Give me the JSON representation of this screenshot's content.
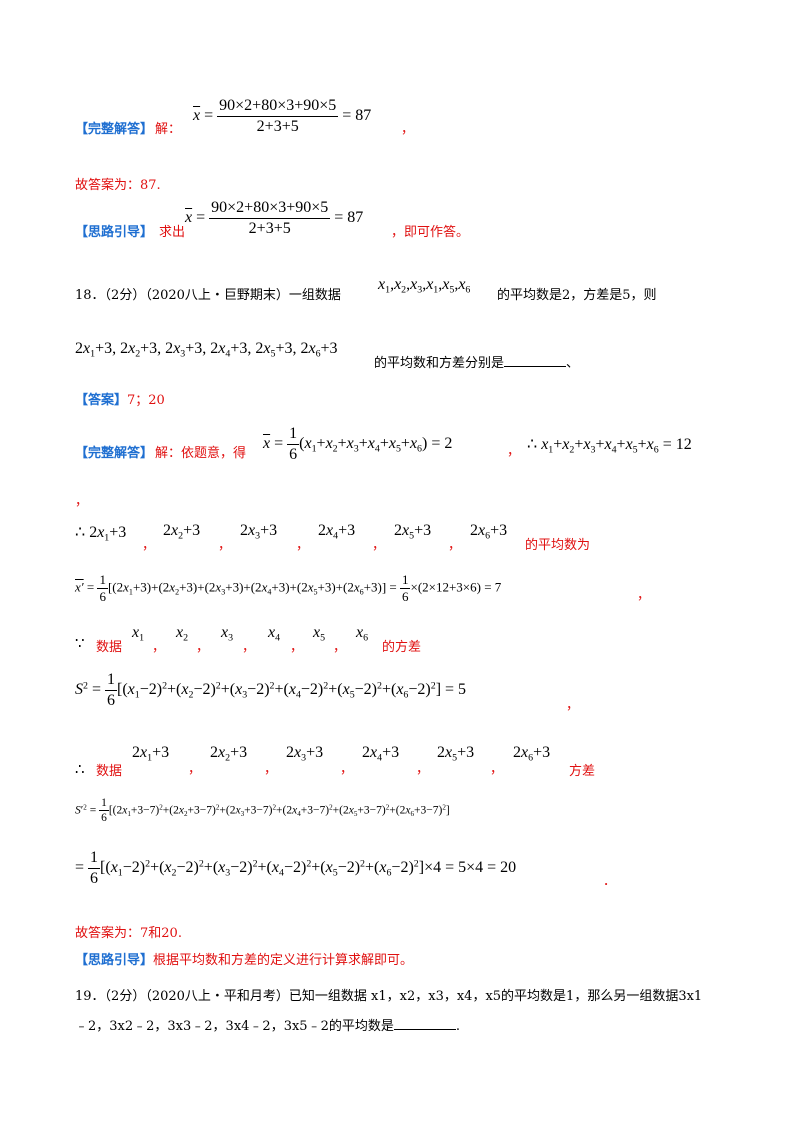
{
  "labels": {
    "full_answer": "【完整解答】",
    "idea_guide": "【思路引导】",
    "answer": "【答案】"
  },
  "q17": {
    "jie": "解：",
    "so_answer": "故答案为：87.",
    "qiu_chu": "求出",
    "ji_ke": "，即可作答。",
    "comma": "，"
  },
  "q18": {
    "prefix": "18．（2分）（2020八上・巨野期末）一组数据",
    "suffix1": "的平均数是2，方差是5，则",
    "suffix2": "的平均数和方差分别是",
    "suffix2_end": "、",
    "answer_value": "7；20",
    "jie_yi": "解：依题意，得",
    "comma": "，",
    "period_red": "．",
    "de_pingjunshu_wei": "的平均数为",
    "shuju": "数据",
    "de_fangcha": "的方差",
    "fangcha": "方差",
    "so_answer": "故答案为：7和20.",
    "guide": "根据平均数和方差的定义进行计算求解即可。",
    "therefore": "∴",
    "because": "∵"
  },
  "q19": {
    "line1": "19．（2分）（2020八上・平和月考）已知一组数据 x1，x2，x3，x4，x5的平均数是1，那么另一组数据3x1",
    "line2": "﹣2，3x2﹣2，3x3﹣2，3x4﹣2，3x5﹣2的平均数是",
    "line2_end": "."
  },
  "colors": {
    "blue": "#1f6fd1",
    "red": "#e01010"
  }
}
